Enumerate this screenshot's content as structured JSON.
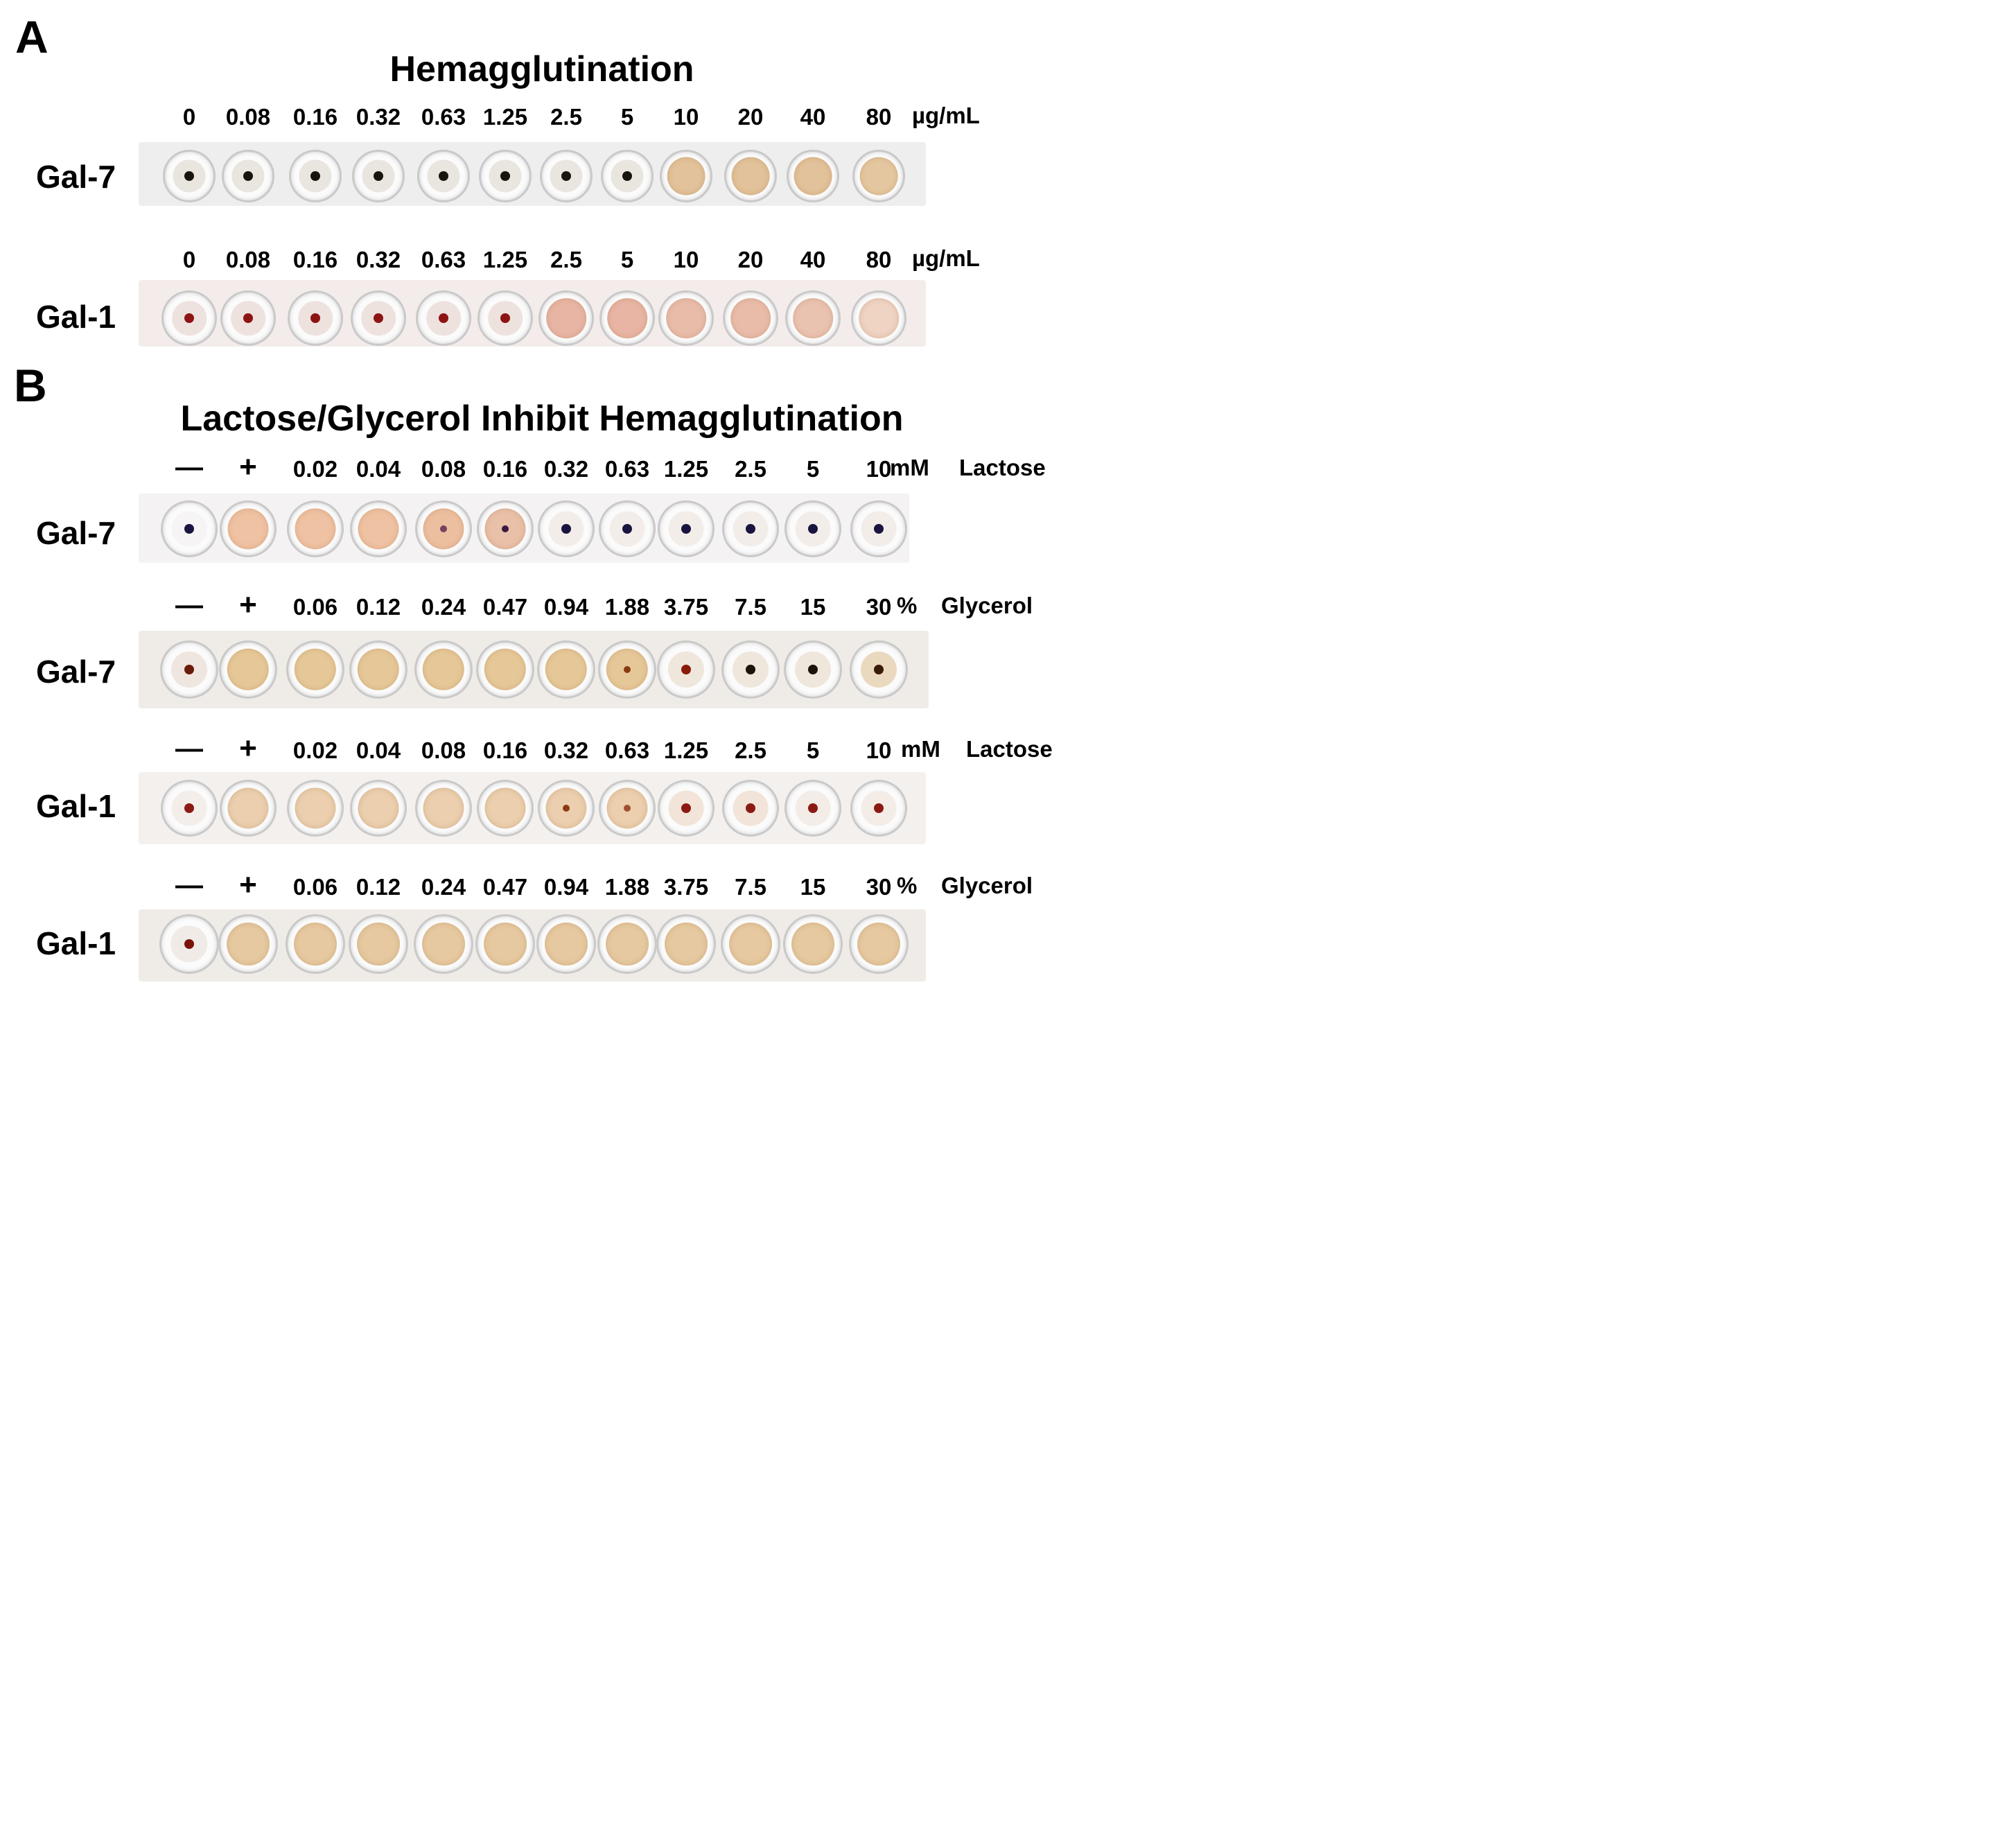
{
  "panel_a": {
    "letter": "A",
    "title": "Hemagglutination",
    "rows": [
      {
        "label": "Gal-7",
        "concentrations": [
          "0",
          "0.08",
          "0.16",
          "0.32",
          "0.63",
          "1.25",
          "2.5",
          "5",
          "10",
          "20",
          "40",
          "80"
        ],
        "unit": "µg/mL",
        "strip_color": "#eeeeee",
        "wells": [
          {
            "state": "button",
            "fill": "#e9e5df",
            "dot": "#1a140d"
          },
          {
            "state": "button",
            "fill": "#e9e5df",
            "dot": "#1a140d"
          },
          {
            "state": "button",
            "fill": "#e9e5df",
            "dot": "#1a140d"
          },
          {
            "state": "button",
            "fill": "#e9e5df",
            "dot": "#1a140d"
          },
          {
            "state": "button",
            "fill": "#e9e5df",
            "dot": "#1a140d"
          },
          {
            "state": "button",
            "fill": "#e9e5df",
            "dot": "#1a140d"
          },
          {
            "state": "button",
            "fill": "#e9e5df",
            "dot": "#1a140d"
          },
          {
            "state": "button",
            "fill": "#e9e5df",
            "dot": "#1a140d"
          },
          {
            "state": "agglutinated",
            "fill": "#e2c29a",
            "dot": ""
          },
          {
            "state": "agglutinated",
            "fill": "#e2c29a",
            "dot": ""
          },
          {
            "state": "agglutinated",
            "fill": "#e2c29a",
            "dot": ""
          },
          {
            "state": "agglutinated",
            "fill": "#e4c7a0",
            "dot": ""
          }
        ]
      },
      {
        "label": "Gal-1",
        "concentrations": [
          "0",
          "0.08",
          "0.16",
          "0.32",
          "0.63",
          "1.25",
          "2.5",
          "5",
          "10",
          "20",
          "40",
          "80"
        ],
        "unit": "µg/mL",
        "strip_color": "#f3eceb",
        "wells": [
          {
            "state": "button",
            "fill": "#eee2df",
            "dot": "#8c1414"
          },
          {
            "state": "button",
            "fill": "#eee2df",
            "dot": "#8c1414"
          },
          {
            "state": "button",
            "fill": "#eee2df",
            "dot": "#8c1414"
          },
          {
            "state": "button",
            "fill": "#eee2df",
            "dot": "#8c1414"
          },
          {
            "state": "button",
            "fill": "#eee2df",
            "dot": "#8c1414"
          },
          {
            "state": "button",
            "fill": "#eee2df",
            "dot": "#8c1414"
          },
          {
            "state": "agglutinated",
            "fill": "#e8b5a4",
            "dot": ""
          },
          {
            "state": "agglutinated",
            "fill": "#e8b5a4",
            "dot": ""
          },
          {
            "state": "agglutinated",
            "fill": "#e9bcaa",
            "dot": ""
          },
          {
            "state": "agglutinated",
            "fill": "#e9bcaa",
            "dot": ""
          },
          {
            "state": "agglutinated",
            "fill": "#eac2b0",
            "dot": ""
          },
          {
            "state": "agglutinated",
            "fill": "#efd3c3",
            "dot": ""
          }
        ]
      }
    ]
  },
  "panel_b": {
    "letter": "B",
    "title": "Lactose/Glycerol Inhibit Hemagglutination",
    "rows": [
      {
        "label": "Gal-7",
        "concentrations": [
          "—",
          "+",
          "0.02",
          "0.04",
          "0.08",
          "0.16",
          "0.32",
          "0.63",
          "1.25",
          "2.5",
          "5",
          "10"
        ],
        "unit": "mM",
        "inhibitor": "Lactose",
        "strip_color": "#f4f2f2",
        "wells": [
          {
            "state": "button",
            "fill": "#f6f4f4",
            "dot": "#1a1440"
          },
          {
            "state": "agglutinated",
            "fill": "#efc2a3",
            "dot": ""
          },
          {
            "state": "agglutinated",
            "fill": "#efc2a3",
            "dot": ""
          },
          {
            "state": "agglutinated",
            "fill": "#efc2a3",
            "dot": ""
          },
          {
            "state": "partial",
            "fill": "#ecbfa0",
            "dot": "#7a4060"
          },
          {
            "state": "partial",
            "fill": "#e9c0a8",
            "dot": "#3a1840"
          },
          {
            "state": "button",
            "fill": "#f3ede9",
            "dot": "#1a1440"
          },
          {
            "state": "button",
            "fill": "#f3ede9",
            "dot": "#1a1440"
          },
          {
            "state": "button",
            "fill": "#f3ede9",
            "dot": "#1a1440"
          },
          {
            "state": "button",
            "fill": "#f3ede9",
            "dot": "#1a1440"
          },
          {
            "state": "button",
            "fill": "#f3ede9",
            "dot": "#1a1440"
          },
          {
            "state": "button",
            "fill": "#f3ede9",
            "dot": "#1a1440"
          }
        ]
      },
      {
        "label": "Gal-7",
        "concentrations": [
          "—",
          "+",
          "0.06",
          "0.12",
          "0.24",
          "0.47",
          "0.94",
          "1.88",
          "3.75",
          "7.5",
          "15",
          "30"
        ],
        "unit": "%",
        "inhibitor": "Glycerol",
        "strip_color": "#efece7",
        "wells": [
          {
            "state": "button",
            "fill": "#eee6df",
            "dot": "#6a1a0a"
          },
          {
            "state": "agglutinated",
            "fill": "#e6c898",
            "dot": ""
          },
          {
            "state": "agglutinated",
            "fill": "#e6c898",
            "dot": ""
          },
          {
            "state": "agglutinated",
            "fill": "#e6c898",
            "dot": ""
          },
          {
            "state": "agglutinated",
            "fill": "#e6c898",
            "dot": ""
          },
          {
            "state": "agglutinated",
            "fill": "#e6c898",
            "dot": ""
          },
          {
            "state": "agglutinated",
            "fill": "#e6c898",
            "dot": ""
          },
          {
            "state": "partial",
            "fill": "#e6c898",
            "dot": "#8a3a10"
          },
          {
            "state": "button",
            "fill": "#efe6dc",
            "dot": "#8a1a0a"
          },
          {
            "state": "button",
            "fill": "#efe6dc",
            "dot": "#1a1408"
          },
          {
            "state": "button",
            "fill": "#efe6dc",
            "dot": "#1a1408"
          },
          {
            "state": "button",
            "fill": "#ebd9bf",
            "dot": "#3a1a08"
          }
        ]
      },
      {
        "label": "Gal-1",
        "concentrations": [
          "—",
          "+",
          "0.02",
          "0.04",
          "0.08",
          "0.16",
          "0.32",
          "0.63",
          "1.25",
          "2.5",
          "5",
          "10"
        ],
        "unit": "mM",
        "inhibitor": "Lactose",
        "strip_color": "#f3f0ee",
        "wells": [
          {
            "state": "button",
            "fill": "#f4eeeb",
            "dot": "#8c1a14"
          },
          {
            "state": "agglutinated",
            "fill": "#ebcfae",
            "dot": ""
          },
          {
            "state": "agglutinated",
            "fill": "#ebcfae",
            "dot": ""
          },
          {
            "state": "agglutinated",
            "fill": "#ebcfae",
            "dot": ""
          },
          {
            "state": "agglutinated",
            "fill": "#ebcfae",
            "dot": ""
          },
          {
            "state": "agglutinated",
            "fill": "#ebcfae",
            "dot": ""
          },
          {
            "state": "partial",
            "fill": "#ebcfae",
            "dot": "#8c3a14"
          },
          {
            "state": "partial",
            "fill": "#ebcfae",
            "dot": "#a05030"
          },
          {
            "state": "button",
            "fill": "#f2e4d8",
            "dot": "#8c1a14"
          },
          {
            "state": "button",
            "fill": "#f2e4d8",
            "dot": "#8c1a14"
          },
          {
            "state": "button",
            "fill": "#f4ece6",
            "dot": "#8c1a14"
          },
          {
            "state": "button",
            "fill": "#f4ece6",
            "dot": "#8c1a14"
          }
        ]
      },
      {
        "label": "Gal-1",
        "concentrations": [
          "—",
          "+",
          "0.06",
          "0.12",
          "0.24",
          "0.47",
          "0.94",
          "1.88",
          "3.75",
          "7.5",
          "15",
          "30"
        ],
        "unit": "%",
        "inhibitor": "Glycerol",
        "strip_color": "#efece8",
        "wells": [
          {
            "state": "button",
            "fill": "#f1ebe7",
            "dot": "#7a1408"
          },
          {
            "state": "agglutinated",
            "fill": "#e6c9a0",
            "dot": ""
          },
          {
            "state": "agglutinated",
            "fill": "#e6c9a0",
            "dot": ""
          },
          {
            "state": "agglutinated",
            "fill": "#e6c9a0",
            "dot": ""
          },
          {
            "state": "agglutinated",
            "fill": "#e6c9a0",
            "dot": ""
          },
          {
            "state": "agglutinated",
            "fill": "#e6c9a0",
            "dot": ""
          },
          {
            "state": "agglutinated",
            "fill": "#e6c9a0",
            "dot": ""
          },
          {
            "state": "agglutinated",
            "fill": "#e6c9a0",
            "dot": ""
          },
          {
            "state": "agglutinated",
            "fill": "#e6c9a0",
            "dot": ""
          },
          {
            "state": "agglutinated",
            "fill": "#e6c9a0",
            "dot": ""
          },
          {
            "state": "agglutinated",
            "fill": "#e6c9a0",
            "dot": ""
          },
          {
            "state": "agglutinated",
            "fill": "#e6c9a0",
            "dot": ""
          }
        ]
      }
    ]
  }
}
